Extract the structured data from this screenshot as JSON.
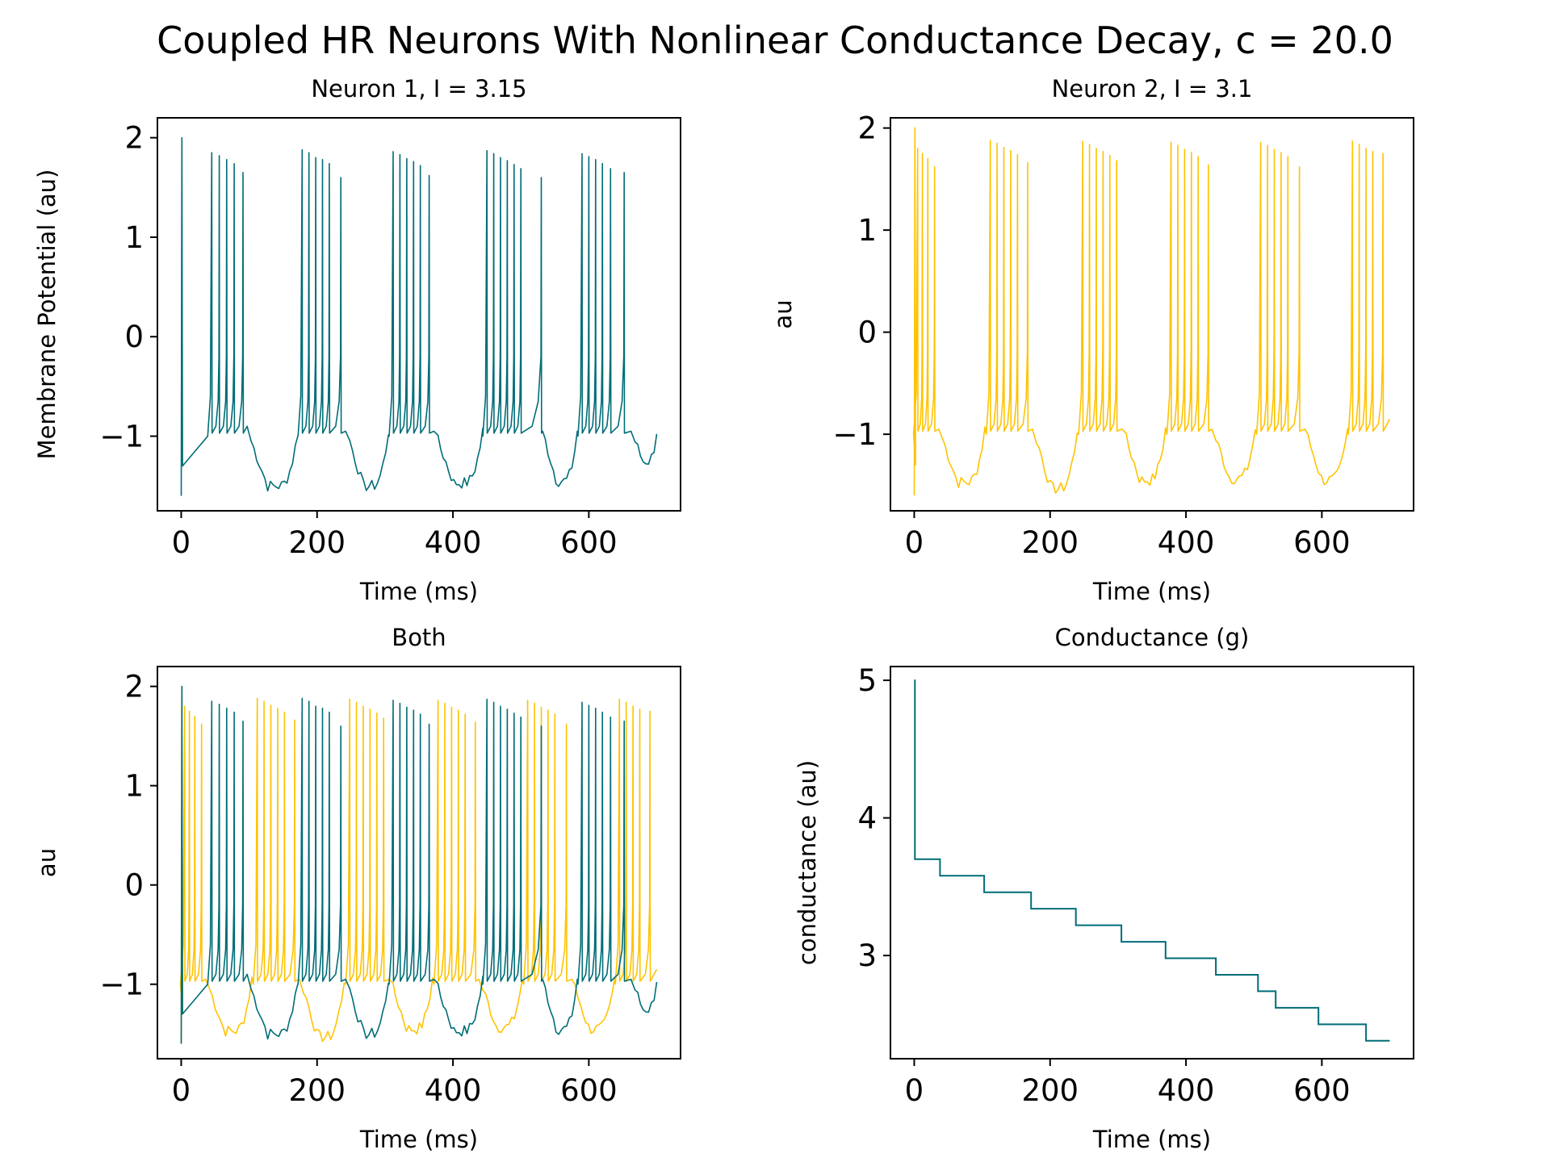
{
  "figure": {
    "suptitle": "Coupled HR Neurons With Nonlinear Conductance Decay, c = 20.0"
  },
  "colors": {
    "neuron1": "#006d77",
    "neuron2": "#ffc300",
    "axis": "#000000",
    "background": "#ffffff"
  },
  "chart_data": [
    {
      "type": "line",
      "title": "Neuron 1, I = 3.15",
      "xlabel": "Time (ms)",
      "ylabel": "Membrane Potential (au)",
      "xlim": [
        -35,
        735
      ],
      "ylim": [
        -1.75,
        2.2
      ],
      "xticks": [
        0,
        200,
        400,
        600
      ],
      "xtick_labels": [
        "0",
        "200",
        "400",
        "600"
      ],
      "yticks": [
        -1,
        0,
        1,
        2
      ],
      "ytick_labels": [
        "−1",
        "0",
        "1",
        "2"
      ],
      "grid": false,
      "series": [
        {
          "key": "n1",
          "color": "#006d77",
          "bursts": [
            {
              "type": "burst",
              "spikes": [
                45,
                56,
                67,
                78,
                91
              ],
              "peaks": [
                1.85,
                1.82,
                1.78,
                1.74,
                1.65
              ],
              "end": 97,
              "tail": -0.9
            },
            {
              "type": "hyper",
              "start": 103,
              "end": 172,
              "min": -1.55
            },
            {
              "type": "burst",
              "spikes": [
                178,
                188,
                198,
                208,
                218,
                235
              ],
              "peaks": [
                1.88,
                1.85,
                1.8,
                1.78,
                1.74,
                1.6
              ],
              "end": 242,
              "tail": -0.95
            },
            {
              "type": "hyper",
              "start": 248,
              "end": 305,
              "min": -1.55
            },
            {
              "type": "burst",
              "spikes": [
                312,
                322,
                332,
                342,
                352,
                365
              ],
              "peaks": [
                1.86,
                1.83,
                1.79,
                1.76,
                1.72,
                1.62
              ],
              "end": 372,
              "tail": -0.95
            },
            {
              "type": "hyper",
              "start": 378,
              "end": 444,
              "min": -1.52
            },
            {
              "type": "burst",
              "spikes": [
                450,
                460,
                470,
                480,
                490,
                500,
                530
              ],
              "peaks": [
                1.87,
                1.84,
                1.8,
                1.77,
                1.73,
                1.69,
                1.6
              ],
              "end": 532,
              "tail": -0.95
            },
            {
              "type": "hyper",
              "start": 536,
              "end": 583,
              "min": -1.5
            },
            {
              "type": "burst",
              "spikes": [
                590,
                600,
                610,
                620,
                632,
                652
              ],
              "peaks": [
                1.84,
                1.81,
                1.78,
                1.74,
                1.69,
                1.65
              ],
              "end": 662,
              "tail": -0.95
            },
            {
              "type": "hyper",
              "start": 668,
              "end": 700,
              "min": -1.3
            }
          ]
        }
      ]
    },
    {
      "type": "line",
      "title": "Neuron 2, I = 3.1",
      "xlabel": "Time (ms)",
      "ylabel": "au",
      "xlim": [
        -35,
        735
      ],
      "ylim": [
        -1.75,
        2.1
      ],
      "xticks": [
        0,
        200,
        400,
        600
      ],
      "xtick_labels": [
        "0",
        "200",
        "400",
        "600"
      ],
      "yticks": [
        -1,
        0,
        1,
        2
      ],
      "ytick_labels": [
        "−1",
        "0",
        "1",
        "2"
      ],
      "grid": false,
      "series": [
        {
          "key": "n2",
          "color": "#ffc300",
          "bursts": [
            {
              "type": "burst",
              "spikes": [
                5,
                12,
                20,
                30
              ],
              "peaks": [
                1.8,
                1.75,
                1.7,
                1.62
              ],
              "end": 36,
              "tail": -0.95
            },
            {
              "type": "hyper",
              "start": 42,
              "end": 104,
              "min": -1.52
            },
            {
              "type": "burst",
              "spikes": [
                112,
                122,
                132,
                142,
                152,
                167
              ],
              "peaks": [
                1.88,
                1.85,
                1.81,
                1.78,
                1.74,
                1.66
              ],
              "end": 174,
              "tail": -0.95
            },
            {
              "type": "hyper",
              "start": 180,
              "end": 240,
              "min": -1.58
            },
            {
              "type": "burst",
              "spikes": [
                248,
                258,
                268,
                278,
                288,
                298
              ],
              "peaks": [
                1.87,
                1.84,
                1.8,
                1.77,
                1.73,
                1.68
              ],
              "end": 306,
              "tail": -0.95
            },
            {
              "type": "hyper",
              "start": 312,
              "end": 370,
              "min": -1.5
            },
            {
              "type": "burst",
              "spikes": [
                378,
                388,
                398,
                408,
                418,
                433
              ],
              "peaks": [
                1.86,
                1.83,
                1.79,
                1.76,
                1.72,
                1.64
              ],
              "end": 438,
              "tail": -0.95
            },
            {
              "type": "hyper",
              "start": 444,
              "end": 502,
              "min": -1.48
            },
            {
              "type": "burst",
              "spikes": [
                510,
                520,
                530,
                540,
                550,
                567
              ],
              "peaks": [
                1.86,
                1.83,
                1.79,
                1.76,
                1.72,
                1.62
              ],
              "end": 575,
              "tail": -0.95
            },
            {
              "type": "hyper",
              "start": 580,
              "end": 638,
              "min": -1.5
            },
            {
              "type": "burst",
              "spikes": [
                645,
                655,
                665,
                675,
                690
              ],
              "peaks": [
                1.87,
                1.84,
                1.8,
                1.77,
                1.75
              ],
              "end": 700,
              "tail": -0.85
            }
          ]
        }
      ]
    },
    {
      "type": "line",
      "title": "Both",
      "xlabel": "Time (ms)",
      "ylabel": "au",
      "xlim": [
        -35,
        735
      ],
      "ylim": [
        -1.75,
        2.2
      ],
      "xticks": [
        0,
        200,
        400,
        600
      ],
      "xtick_labels": [
        "0",
        "200",
        "400",
        "600"
      ],
      "yticks": [
        -1,
        0,
        1,
        2
      ],
      "ytick_labels": [
        "−1",
        "0",
        "1",
        "2"
      ],
      "grid": false,
      "series": [
        {
          "key": "n2",
          "color": "#ffc300",
          "ref": 1
        },
        {
          "key": "n1",
          "color": "#006d77",
          "ref": 0
        }
      ]
    },
    {
      "type": "line",
      "title": "Conductance (g)",
      "xlabel": "Time (ms)",
      "ylabel": "conductance (au)",
      "xlim": [
        -35,
        735
      ],
      "ylim": [
        2.25,
        5.1
      ],
      "xticks": [
        0,
        200,
        400,
        600
      ],
      "xtick_labels": [
        "0",
        "200",
        "400",
        "600"
      ],
      "yticks": [
        3,
        4,
        5
      ],
      "ytick_labels": [
        "3",
        "4",
        "5"
      ],
      "grid": false,
      "series": [
        {
          "key": "g",
          "color": "#006d77",
          "steps": {
            "x": [
              0,
              1,
              38,
              103,
              172,
              238,
              305,
              370,
              444,
              506,
              532,
              595,
              665,
              700
            ],
            "y": [
              5.0,
              3.7,
              3.58,
              3.46,
              3.34,
              3.22,
              3.1,
              2.98,
              2.86,
              2.74,
              2.62,
              2.5,
              2.38,
              2.38
            ]
          }
        }
      ]
    }
  ]
}
